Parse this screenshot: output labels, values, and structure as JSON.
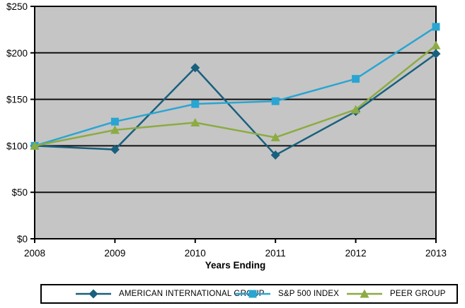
{
  "chart_data": {
    "type": "line",
    "title": "",
    "xlabel": "Years Ending",
    "ylabel": "",
    "categories": [
      "2008",
      "2009",
      "2010",
      "2011",
      "2012",
      "2013"
    ],
    "y_ticks": [
      0,
      50,
      100,
      150,
      200,
      250
    ],
    "y_tick_labels": [
      "$0",
      "$50",
      "$100",
      "$150",
      "$200",
      "$250"
    ],
    "ylim": [
      0,
      250
    ],
    "grid": "horizontal",
    "legend_position": "bottom",
    "plot_background": "#c5c5c5",
    "gridline_color": "#111111",
    "axis_color": "#000000",
    "text_color": "#000000",
    "series": [
      {
        "name": "AMERICAN INTERNATIONAL GROUP",
        "marker": "diamond",
        "color": "#19607e",
        "values": [
          100,
          96,
          184,
          90,
          137,
          199
        ]
      },
      {
        "name": "S&P 500 INDEX",
        "marker": "square",
        "color": "#2aa5d2",
        "values": [
          100,
          126,
          145,
          148,
          172,
          228
        ]
      },
      {
        "name": "PEER GROUP",
        "marker": "triangle",
        "color": "#8cab42",
        "values": [
          100,
          117,
          125,
          109,
          139,
          208
        ]
      }
    ]
  }
}
